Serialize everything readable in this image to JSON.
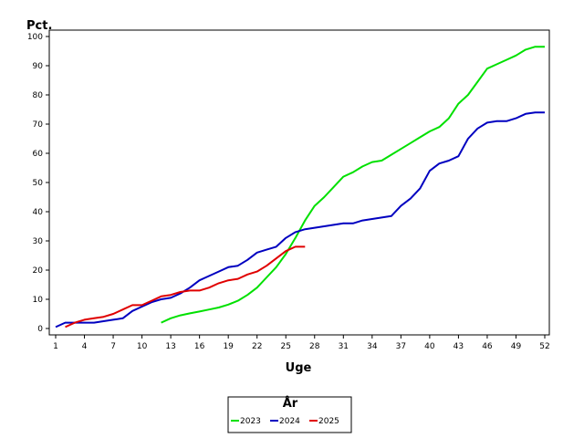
{
  "chart_data": {
    "type": "line",
    "ylabel": "Pct.",
    "xlabel": "Uge",
    "xlim": [
      1,
      52
    ],
    "ylim": [
      0,
      100
    ],
    "xticks": [
      1,
      4,
      7,
      10,
      13,
      16,
      19,
      22,
      25,
      28,
      31,
      34,
      37,
      40,
      43,
      46,
      49,
      52
    ],
    "yticks": [
      0,
      10,
      20,
      30,
      40,
      50,
      60,
      70,
      80,
      90,
      100
    ],
    "legend": {
      "title": "År",
      "placement": "bottom-center"
    },
    "series": [
      {
        "name": "2023",
        "color": "#00e000",
        "x": [
          12,
          13,
          14,
          15,
          16,
          17,
          18,
          19,
          20,
          21,
          22,
          23,
          24,
          25,
          26,
          27,
          28,
          29,
          30,
          31,
          32,
          33,
          34,
          35,
          36,
          37,
          38,
          39,
          40,
          41,
          42,
          43,
          44,
          45,
          46,
          47,
          48,
          49,
          50,
          51,
          52
        ],
        "values": [
          2,
          3.5,
          4.5,
          5.2,
          5.8,
          6.5,
          7.2,
          8.2,
          9.5,
          11.5,
          14,
          17.5,
          21,
          25.5,
          31,
          37,
          42,
          45,
          48.5,
          52,
          53.5,
          55.5,
          57,
          57.5,
          59.5,
          61.5,
          63.5,
          65.5,
          67.5,
          69,
          72,
          77,
          80,
          84.5,
          89,
          90.5,
          92,
          93.5,
          95.5,
          96.5,
          96.5
        ]
      },
      {
        "name": "2024",
        "color": "#0000c0",
        "x": [
          1,
          2,
          3,
          4,
          5,
          6,
          7,
          8,
          9,
          10,
          11,
          12,
          13,
          14,
          15,
          16,
          17,
          18,
          19,
          20,
          21,
          22,
          23,
          24,
          25,
          26,
          27,
          28,
          29,
          30,
          31,
          32,
          33,
          34,
          35,
          36,
          37,
          38,
          39,
          40,
          41,
          42,
          43,
          44,
          45,
          46,
          47,
          48,
          49,
          50,
          51,
          52
        ],
        "values": [
          0.5,
          2,
          2,
          2,
          2,
          2.5,
          3,
          3.5,
          6,
          7.5,
          9,
          10,
          10.5,
          12,
          14,
          16.5,
          18,
          19.5,
          21,
          21.5,
          23.5,
          26,
          27,
          28,
          31,
          33,
          34,
          34.5,
          35,
          35.5,
          36,
          36,
          37,
          37.5,
          38,
          38.5,
          42,
          44.5,
          48,
          54,
          56.5,
          57.5,
          59,
          65,
          68.5,
          70.5,
          71,
          71,
          72,
          73.5,
          74,
          74
        ]
      },
      {
        "name": "2025",
        "color": "#e00000",
        "x": [
          2,
          3,
          4,
          5,
          6,
          7,
          8,
          9,
          10,
          11,
          12,
          13,
          14,
          15,
          16,
          17,
          18,
          19,
          20,
          21,
          22,
          23,
          24,
          25,
          26,
          27
        ],
        "values": [
          0.5,
          2,
          3,
          3.5,
          4,
          5,
          6.5,
          8,
          8,
          9.5,
          11,
          11.5,
          12.5,
          13,
          13,
          14,
          15.5,
          16.5,
          17,
          18.5,
          19.5,
          21.5,
          24,
          26.5,
          28,
          28
        ]
      }
    ]
  }
}
